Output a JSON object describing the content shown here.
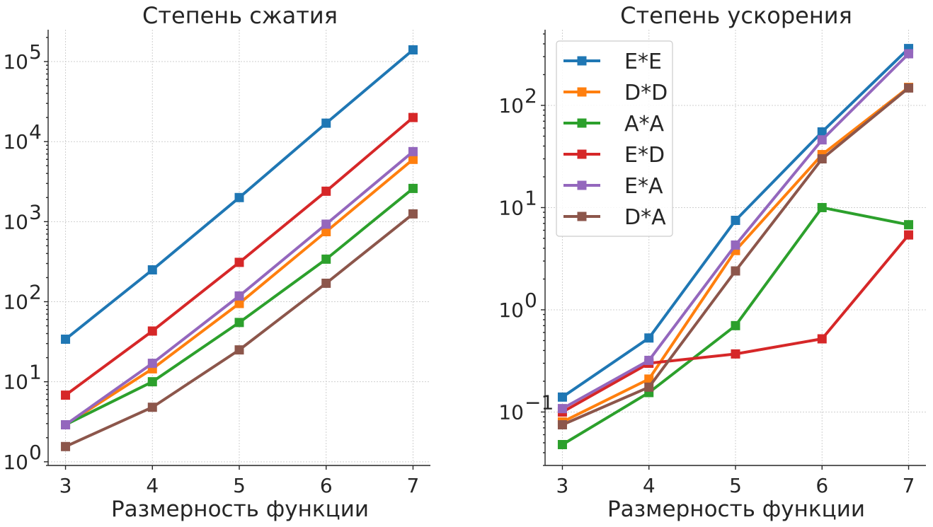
{
  "chart_data": [
    {
      "type": "line",
      "title": "Степень сжатия",
      "xlabel": "Размерность функции",
      "ylabel": "",
      "yscale": "log",
      "x": [
        3,
        4,
        5,
        6,
        7
      ],
      "xlim": [
        2.8,
        7.2
      ],
      "ylim": [
        0.9,
        250000
      ],
      "ytick_base": "10",
      "yticks": [
        {
          "value": 1,
          "exp": "0"
        },
        {
          "value": 10,
          "exp": "1"
        },
        {
          "value": 100,
          "exp": "2"
        },
        {
          "value": 1000,
          "exp": "3"
        },
        {
          "value": 10000,
          "exp": "4"
        },
        {
          "value": 100000,
          "exp": "5"
        }
      ],
      "grid": true,
      "series": [
        {
          "name": "E*E",
          "color": "#1f77b4",
          "values": [
            34,
            250,
            2000,
            17000,
            140000
          ]
        },
        {
          "name": "D*D",
          "color": "#ff7f0e",
          "values": [
            2.9,
            14.5,
            95,
            750,
            6000
          ]
        },
        {
          "name": "A*A",
          "color": "#2ca02c",
          "values": [
            2.9,
            10,
            55,
            340,
            2600
          ]
        },
        {
          "name": "E*D",
          "color": "#d62728",
          "values": [
            6.8,
            43,
            310,
            2400,
            20000
          ]
        },
        {
          "name": "E*A",
          "color": "#9467bd",
          "values": [
            2.9,
            17,
            118,
            930,
            7500
          ]
        },
        {
          "name": "D*A",
          "color": "#8c564b",
          "values": [
            1.55,
            4.8,
            25,
            170,
            1250
          ]
        }
      ]
    },
    {
      "type": "line",
      "title": "Степень ускорения",
      "xlabel": "Размерность функции",
      "ylabel": "",
      "yscale": "log",
      "x": [
        3,
        4,
        5,
        6,
        7
      ],
      "xlim": [
        2.8,
        7.2
      ],
      "ylim": [
        0.03,
        550
      ],
      "ytick_base": "10",
      "yticks": [
        {
          "value": 0.1,
          "exp": "−1"
        },
        {
          "value": 1,
          "exp": "0"
        },
        {
          "value": 10,
          "exp": "1"
        },
        {
          "value": 100,
          "exp": "2"
        }
      ],
      "grid": true,
      "legend": "top-left",
      "series": [
        {
          "name": "E*E",
          "color": "#1f77b4",
          "values": [
            0.14,
            0.53,
            7.5,
            55,
            360
          ]
        },
        {
          "name": "D*D",
          "color": "#ff7f0e",
          "values": [
            0.08,
            0.21,
            3.8,
            33,
            150
          ]
        },
        {
          "name": "A*A",
          "color": "#2ca02c",
          "values": [
            0.048,
            0.155,
            0.7,
            10,
            6.8
          ]
        },
        {
          "name": "E*D",
          "color": "#d62728",
          "values": [
            0.1,
            0.3,
            0.37,
            0.52,
            5.4
          ]
        },
        {
          "name": "E*A",
          "color": "#9467bd",
          "values": [
            0.108,
            0.32,
            4.3,
            46,
            320
          ]
        },
        {
          "name": "D*A",
          "color": "#8c564b",
          "values": [
            0.075,
            0.175,
            2.4,
            30,
            148
          ]
        }
      ]
    }
  ]
}
